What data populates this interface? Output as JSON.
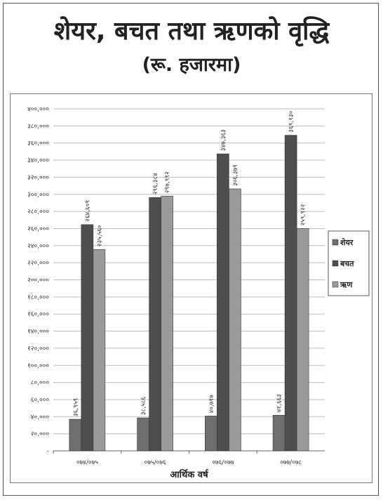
{
  "title": "शेयर, बचत तथा ऋणको वृद्धि",
  "subtitle": "(रू. हजारमा)",
  "chart_data": {
    "type": "bar",
    "title": "शेयर, बचत तथा ऋणको वृद्धि",
    "subtitle": "(रू. हजारमा)",
    "xlabel": "आर्थिक वर्ष",
    "ylabel": "",
    "categories": [
      "०७४/०७५",
      "०७५/०७६",
      "०७६/०७७",
      "०७७/०७८"
    ],
    "ylim": [
      0,
      400000
    ],
    "yticks": [
      0,
      20000,
      40000,
      60000,
      80000,
      100000,
      120000,
      140000,
      160000,
      180000,
      200000,
      220000,
      240000,
      260000,
      280000,
      300000,
      320000,
      340000,
      360000,
      380000,
      400000
    ],
    "ytick_labels": [
      "-",
      "२०,०००",
      "४०,०००",
      "६०,०००",
      "८०,०००",
      "१००,०००",
      "१२०,०००",
      "१४०,०००",
      "१६०,०००",
      "१८०,०००",
      "२००,०००",
      "२२०,०००",
      "२४०,०००",
      "२६०,०००",
      "२८०,०००",
      "३००,०००",
      "३२०,०००",
      "३४०,०००",
      "३६०,०००",
      "३८०,०००",
      "४००,०००"
    ],
    "grid": true,
    "legend_position": "right",
    "series": [
      {
        "name": "शेयर",
        "color": "#6e6e6e",
        "values": [
          36959,
          38586,
          40717,
          41663
        ],
        "labels": [
          "३६,९५९",
          "३८,५८६",
          "४०,७१७",
          "४१,६६३"
        ]
      },
      {
        "name": "बचत",
        "color": "#4e4e4e",
        "values": [
          264609,
          296384,
          347363,
          369130
        ],
        "labels": [
          "२६४,६०९",
          "२९६,३८४",
          "३४७,३६३",
          "३६९,१३०"
        ]
      },
      {
        "name": "ऋण",
        "color": "#9a9a9a",
        "values": [
          235560,
          297992,
          306379,
          259922
        ],
        "labels": [
          "२३५,५६०",
          "२९७,९९२",
          "३०६,३७९",
          "२५९,९२२"
        ]
      }
    ]
  }
}
